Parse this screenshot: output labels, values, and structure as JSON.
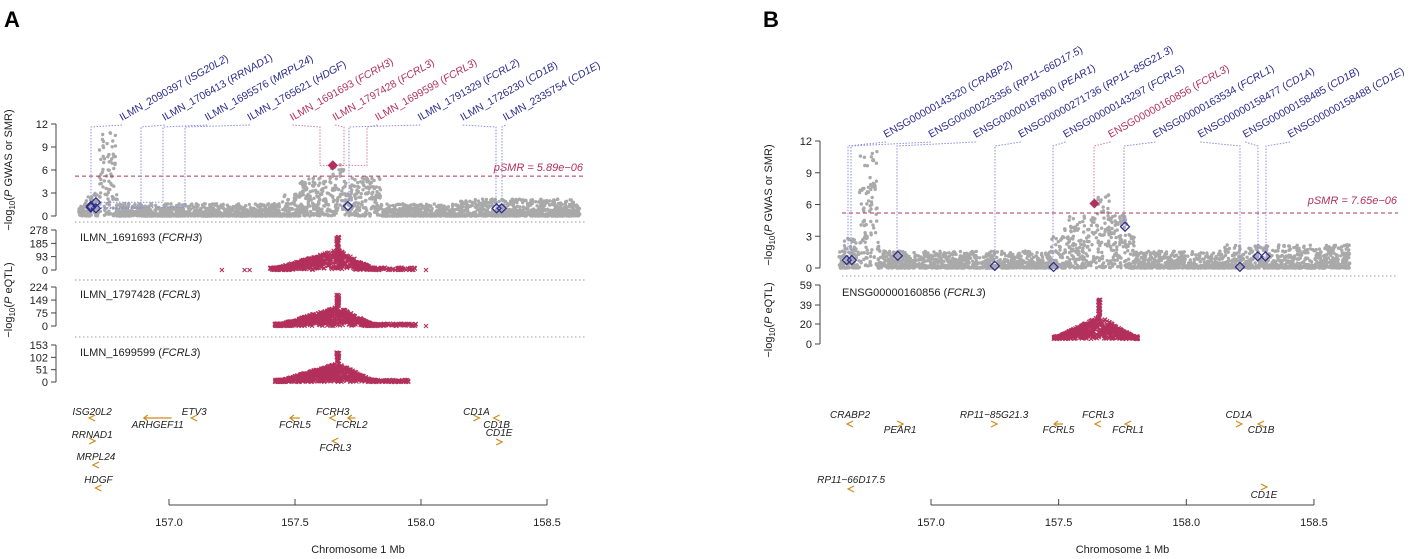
{
  "colors": {
    "gwas_point": "#a9a9a9",
    "probe": "#2b2b8f",
    "significant": "#b3305c",
    "connector": "#8c8ce0",
    "gene": "#d08a1e",
    "axis": "#444444"
  },
  "chart_data": [
    {
      "panel": "A",
      "type": "scatter",
      "xlabel": "Chromosome 1 Mb",
      "xticks": [
        "157.0",
        "157.5",
        "158.0",
        "158.5"
      ],
      "gwas": {
        "ylabel": {
          "pre": "−log",
          "sub": "10",
          "open": "(",
          "italic": "P",
          "post": " GWAS or SMR)"
        },
        "ylim": [
          0,
          12
        ],
        "yticks": [
          0,
          3,
          6,
          9,
          12
        ],
        "threshold": 5.2,
        "threshold_label": "pSMR = 5.89e−06",
        "profile": [
          [
            156.64,
            158.63,
            1.6
          ],
          [
            156.66,
            156.8,
            3.0
          ],
          [
            156.72,
            156.79,
            11.0
          ],
          [
            157.45,
            157.84,
            3.0
          ],
          [
            157.52,
            157.84,
            5.0
          ],
          [
            157.64,
            157.7,
            7.0
          ],
          [
            158.15,
            158.62,
            2.2
          ]
        ]
      },
      "probes": [
        {
          "id": "ILMN_2090397",
          "gene": "ISG20L2",
          "pos": 156.69,
          "value": 1.3,
          "significant": false
        },
        {
          "id": "ILMN_1706413",
          "gene": "RRNAD1",
          "pos": 156.71,
          "value": 1.0,
          "significant": false
        },
        {
          "id": "ILMN_1695576",
          "gene": "MRPL24",
          "pos": 156.71,
          "value": 1.8,
          "significant": false
        },
        {
          "id": "ILMN_1765621",
          "gene": "HDGF",
          "pos": 156.69,
          "value": 1.1,
          "significant": false
        },
        {
          "id": "ILMN_1691693",
          "gene": "FCRH3",
          "pos": 157.65,
          "value": 6.6,
          "significant": true
        },
        {
          "id": "ILMN_1797428",
          "gene": "FCRL3",
          "pos": 157.65,
          "value": 6.6,
          "significant": true
        },
        {
          "id": "ILMN_1699599",
          "gene": "FCRL3",
          "pos": 157.65,
          "value": 6.6,
          "significant": true
        },
        {
          "id": "ILMN_1791329",
          "gene": "FCRL2",
          "pos": 157.71,
          "value": 1.3,
          "significant": false
        },
        {
          "id": "ILMN_1726230",
          "gene": "CD1B",
          "pos": 158.3,
          "value": 1.0,
          "significant": false
        },
        {
          "id": "ILMN_2335754",
          "gene": "CD1E",
          "pos": 158.32,
          "value": 1.0,
          "significant": false
        }
      ],
      "eqtl_ylabel": {
        "pre": "−log",
        "sub": "10",
        "open": "(",
        "italic": "P",
        "post": " eQTL)"
      },
      "eqtl": [
        {
          "probe": "ILMN_1691693",
          "gene": "FCRH3",
          "ylim": [
            0,
            278
          ],
          "yticks": [
            0,
            93,
            185,
            278
          ],
          "peak_pos": 157.67,
          "peak": 230,
          "range": [
            157.4,
            157.82
          ],
          "tail": [
            157.82,
            157.98
          ],
          "stray": [
            157.21,
            157.3,
            157.32,
            158.02
          ],
          "floor": 0
        },
        {
          "probe": "ILMN_1797428",
          "gene": "FCRL3",
          "ylim": [
            0,
            224
          ],
          "yticks": [
            0,
            75,
            149,
            224
          ],
          "peak_pos": 157.67,
          "peak": 180,
          "range": [
            157.42,
            157.82
          ],
          "tail": [
            157.82,
            157.98
          ],
          "stray": [
            158.02
          ],
          "floor": 0
        },
        {
          "probe": "ILMN_1699599",
          "gene": "FCRL3",
          "ylim": [
            0,
            153
          ],
          "yticks": [
            0,
            51,
            102,
            153
          ],
          "peak_pos": 157.67,
          "peak": 125,
          "range": [
            157.42,
            157.82
          ],
          "tail": [
            157.82,
            157.95
          ],
          "stray": [],
          "floor": 0
        }
      ],
      "genes": [
        {
          "name": "ISG20L2",
          "start": 156.69,
          "end": 156.7,
          "strand": "-"
        },
        {
          "name": "RRNAD1",
          "start": 156.69,
          "end": 156.7,
          "strand": "+"
        },
        {
          "name": "MRPL24",
          "start": 156.705,
          "end": 156.715,
          "strand": "-"
        },
        {
          "name": "HDGF",
          "start": 156.715,
          "end": 156.725,
          "strand": "-"
        },
        {
          "name": "ARHGEF11",
          "start": 156.9,
          "end": 157.01,
          "strand": "-"
        },
        {
          "name": "ETV3",
          "start": 157.095,
          "end": 157.105,
          "strand": "-"
        },
        {
          "name": "FCRL5",
          "start": 157.48,
          "end": 157.52,
          "strand": "-"
        },
        {
          "name": "FCRH3",
          "start": 157.645,
          "end": 157.655,
          "strand": "-"
        },
        {
          "name": "FCRL2",
          "start": 157.71,
          "end": 157.74,
          "strand": "-"
        },
        {
          "name": "FCRL3",
          "start": 157.655,
          "end": 157.665,
          "strand": "-"
        },
        {
          "name": "CD1A",
          "start": 158.215,
          "end": 158.225,
          "strand": "+"
        },
        {
          "name": "CD1B",
          "start": 158.295,
          "end": 158.305,
          "strand": "-"
        },
        {
          "name": "CD1E",
          "start": 158.305,
          "end": 158.315,
          "strand": "+"
        }
      ]
    },
    {
      "panel": "B",
      "type": "scatter",
      "xlabel": "Chromosome 1 Mb",
      "xticks": [
        "157.0",
        "157.5",
        "158.0",
        "158.5"
      ],
      "gwas": {
        "ylabel": {
          "pre": "−log",
          "sub": "10",
          "open": "(",
          "italic": "P",
          "post": " GWAS or SMR)"
        },
        "ylim": [
          0,
          12
        ],
        "yticks": [
          0,
          3,
          6,
          9,
          12
        ],
        "threshold": 5.2,
        "threshold_label": "pSMR = 7.65e−06",
        "profile": [
          [
            156.64,
            158.64,
            1.6
          ],
          [
            156.66,
            156.8,
            3.0
          ],
          [
            156.72,
            156.79,
            11.0
          ],
          [
            157.47,
            157.8,
            3.0
          ],
          [
            157.52,
            157.78,
            5.0
          ],
          [
            157.64,
            157.7,
            7.0
          ],
          [
            158.15,
            158.64,
            2.2
          ]
        ]
      },
      "probes": [
        {
          "id": "ENSG00000143320",
          "gene": "CRABP2",
          "pos": 156.67,
          "value": 0.75,
          "significant": false
        },
        {
          "id": "ENSG00000223356",
          "gene": "RP11−66D17.5",
          "pos": 156.69,
          "value": 0.75,
          "significant": false
        },
        {
          "id": "ENSG00000187800",
          "gene": "PEAR1",
          "pos": 156.87,
          "value": 1.15,
          "significant": false
        },
        {
          "id": "ENSG00000271736",
          "gene": "RP11−85G21.3",
          "pos": 157.25,
          "value": 0.2,
          "significant": false
        },
        {
          "id": "ENSG00000143297",
          "gene": "FCRL5",
          "pos": 157.48,
          "value": 0.1,
          "significant": false
        },
        {
          "id": "ENSG00000160856",
          "gene": "FCRL3",
          "pos": 157.64,
          "value": 6.1,
          "significant": true
        },
        {
          "id": "ENSG00000163534",
          "gene": "FCRL1",
          "pos": 157.76,
          "value": 3.9,
          "significant": false
        },
        {
          "id": "ENSG00000158477",
          "gene": "CD1A",
          "pos": 158.21,
          "value": 0.1,
          "significant": false
        },
        {
          "id": "ENSG00000158485",
          "gene": "CD1B",
          "pos": 158.28,
          "value": 1.1,
          "significant": false
        },
        {
          "id": "ENSG00000158488",
          "gene": "CD1E",
          "pos": 158.31,
          "value": 1.1,
          "significant": false
        }
      ],
      "eqtl_ylabel": {
        "pre": "−log",
        "sub": "10",
        "open": "(",
        "italic": "P",
        "post": " eQTL)"
      },
      "eqtl": [
        {
          "probe": "ENSG00000160856",
          "gene": "FCRL3",
          "ylim": [
            0,
            59
          ],
          "yticks": [
            0,
            20,
            39,
            59
          ],
          "peak_pos": 157.66,
          "peak": 45,
          "range": [
            157.48,
            157.81
          ],
          "tail": [],
          "stray": [],
          "floor": 5
        }
      ],
      "genes": [
        {
          "name": "CRABP2",
          "start": 156.678,
          "end": 156.688,
          "strand": "-"
        },
        {
          "name": "PEAR1",
          "start": 156.874,
          "end": 156.884,
          "strand": "+"
        },
        {
          "name": "RP11−85G21.3",
          "start": 157.242,
          "end": 157.252,
          "strand": "+"
        },
        {
          "name": "FCRL5",
          "start": 157.482,
          "end": 157.517,
          "strand": "-"
        },
        {
          "name": "FCRL3",
          "start": 157.649,
          "end": 157.659,
          "strand": "-"
        },
        {
          "name": "FCRL1",
          "start": 157.767,
          "end": 157.777,
          "strand": "-"
        },
        {
          "name": "CD1A",
          "start": 158.201,
          "end": 158.211,
          "strand": "+"
        },
        {
          "name": "CD1B",
          "start": 158.288,
          "end": 158.298,
          "strand": "-"
        },
        {
          "name": "RP11−66D17.5",
          "start": 156.682,
          "end": 156.692,
          "strand": "-"
        },
        {
          "name": "CD1E",
          "start": 158.299,
          "end": 158.309,
          "strand": "+"
        }
      ]
    }
  ]
}
